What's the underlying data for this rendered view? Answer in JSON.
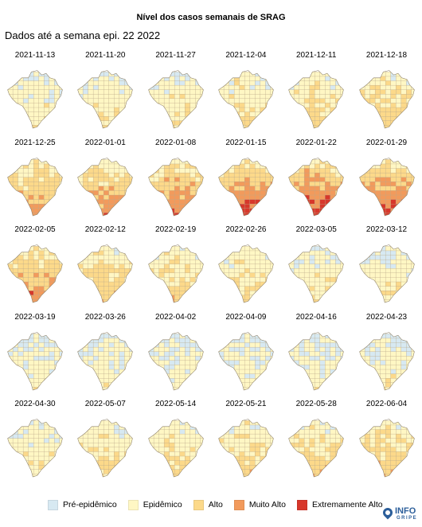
{
  "title": "Nível dos casos semanais de SRAG",
  "subtitle": "Dados até a semana epi. 22 2022",
  "levels": [
    {
      "key": "pre",
      "label": "Pré-epidêmico",
      "color": "#d7e9f2"
    },
    {
      "key": "epi",
      "label": "Epidêmico",
      "color": "#fff7c4"
    },
    {
      "key": "alto",
      "label": "Alto",
      "color": "#fcd98a"
    },
    {
      "key": "muito",
      "label": "Muito Alto",
      "color": "#f29a5c"
    },
    {
      "key": "extremo",
      "label": "Extremamente Alto",
      "color": "#d7372b"
    }
  ],
  "panels": [
    {
      "date": "2021-11-13",
      "intensity": 1.2
    },
    {
      "date": "2021-11-20",
      "intensity": 1.3
    },
    {
      "date": "2021-11-27",
      "intensity": 1.4
    },
    {
      "date": "2021-12-04",
      "intensity": 1.5
    },
    {
      "date": "2021-12-11",
      "intensity": 1.7
    },
    {
      "date": "2021-12-18",
      "intensity": 2.0
    },
    {
      "date": "2021-12-25",
      "intensity": 2.5
    },
    {
      "date": "2022-01-01",
      "intensity": 2.7
    },
    {
      "date": "2022-01-08",
      "intensity": 3.0
    },
    {
      "date": "2022-01-15",
      "intensity": 3.4
    },
    {
      "date": "2022-01-22",
      "intensity": 3.5
    },
    {
      "date": "2022-01-29",
      "intensity": 3.3
    },
    {
      "date": "2022-02-05",
      "intensity": 2.8
    },
    {
      "date": "2022-02-12",
      "intensity": 2.2
    },
    {
      "date": "2022-02-19",
      "intensity": 1.9
    },
    {
      "date": "2022-02-26",
      "intensity": 1.6
    },
    {
      "date": "2022-03-05",
      "intensity": 1.3
    },
    {
      "date": "2022-03-12",
      "intensity": 1.3
    },
    {
      "date": "2022-03-19",
      "intensity": 1.0
    },
    {
      "date": "2022-03-26",
      "intensity": 1.0
    },
    {
      "date": "2022-04-02",
      "intensity": 0.9
    },
    {
      "date": "2022-04-09",
      "intensity": 0.9
    },
    {
      "date": "2022-04-16",
      "intensity": 0.9
    },
    {
      "date": "2022-04-23",
      "intensity": 1.0
    },
    {
      "date": "2022-04-30",
      "intensity": 1.3
    },
    {
      "date": "2022-05-07",
      "intensity": 1.5
    },
    {
      "date": "2022-05-14",
      "intensity": 1.6
    },
    {
      "date": "2022-05-21",
      "intensity": 1.8
    },
    {
      "date": "2022-05-28",
      "intensity": 2.0
    },
    {
      "date": "2022-06-04",
      "intensity": 2.1
    }
  ],
  "logo": {
    "line1": "INFO",
    "line2": "GRIPE"
  }
}
